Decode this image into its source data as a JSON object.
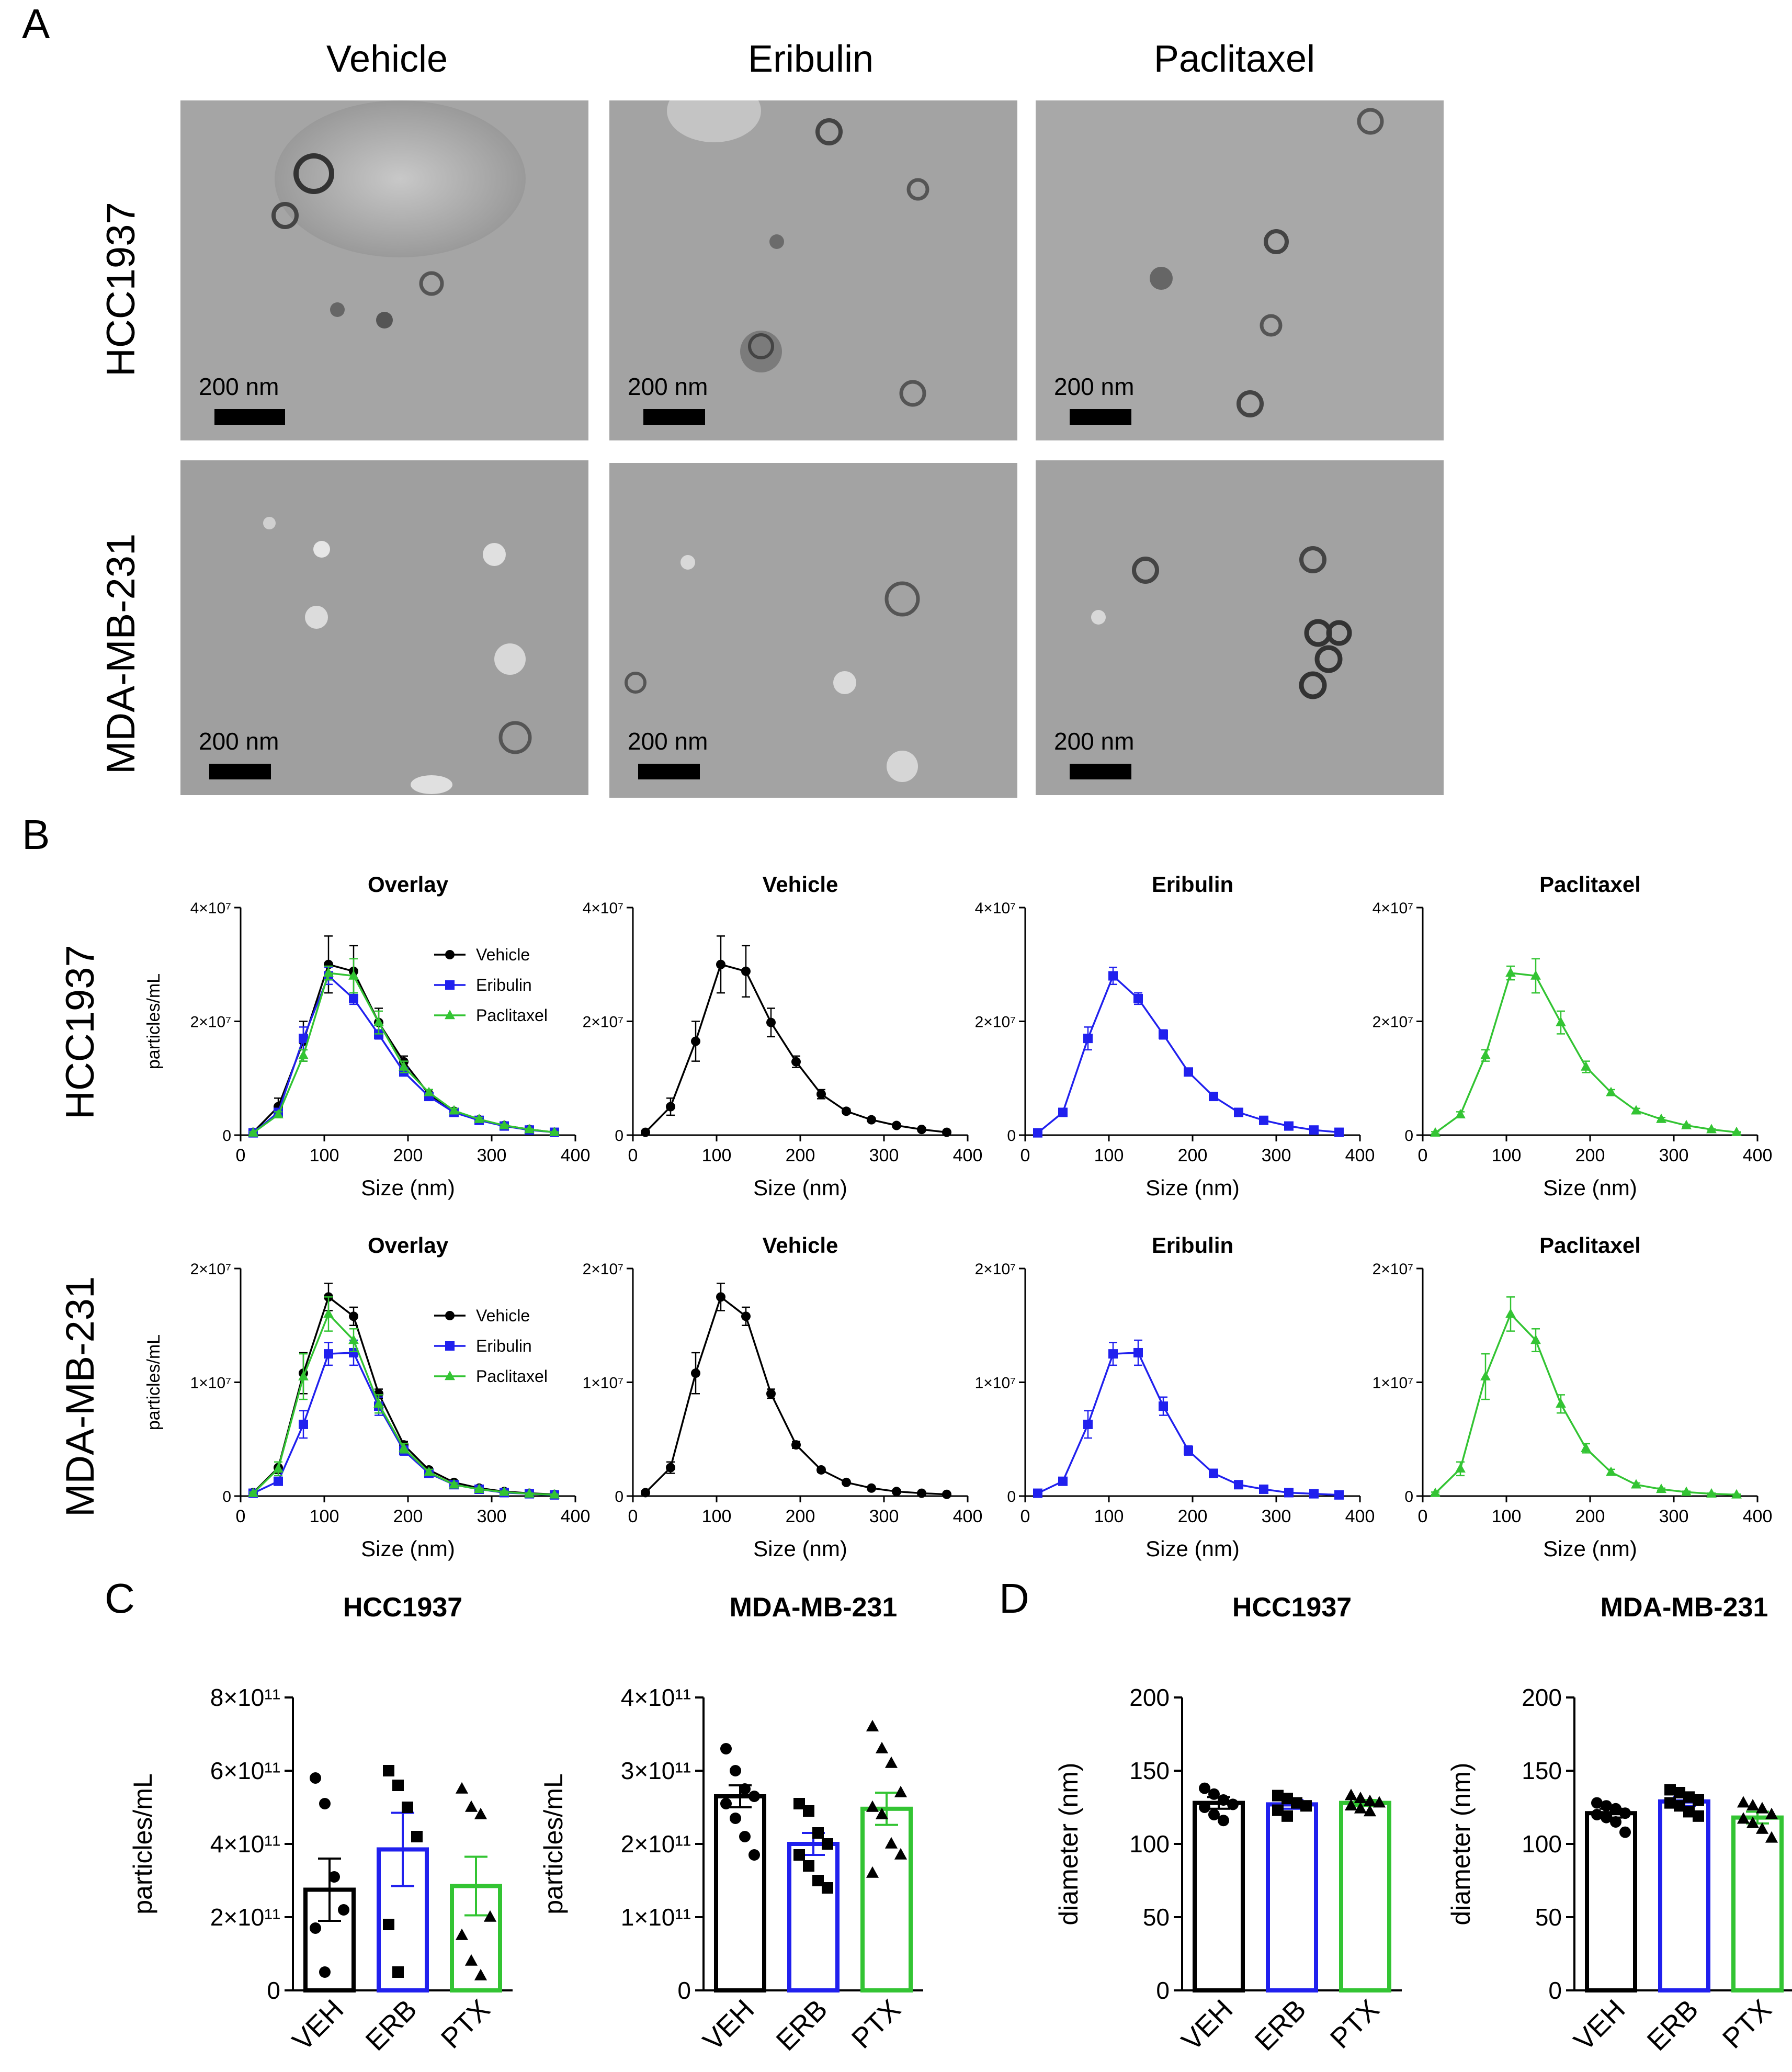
{
  "panels": {
    "a": "A",
    "b": "B",
    "c": "C",
    "d": "D"
  },
  "panel_a": {
    "columns": [
      "Vehicle",
      "Eribulin",
      "Paclitaxel"
    ],
    "rows": [
      "HCC1937",
      "MDA-MB-231"
    ],
    "scale_label": "200 nm"
  },
  "panel_b": {
    "rows": [
      "HCC1937",
      "MDA-MB-231"
    ],
    "overlay_title": "Overlay",
    "xlabel": "Size (nm)",
    "ylabel": "particles/mL",
    "legend": [
      "Vehicle",
      "Eribulin",
      "Paclitaxel"
    ],
    "colors": {
      "Vehicle": "#000000",
      "Eribulin": "#2020ee",
      "Paclitaxel": "#33c433"
    }
  },
  "chart_data": [
    {
      "type": "line",
      "id": "hcc-overlay",
      "title": "Overlay",
      "xlabel": "Size (nm)",
      "ylabel": "particles/mL",
      "xlim": [
        0,
        400
      ],
      "ylim": [
        0,
        40000000
      ],
      "xticks": [
        "0",
        "100",
        "200",
        "300",
        "400"
      ],
      "yticks": [
        "0",
        "2×10⁷",
        "4×10⁷"
      ],
      "legend_position": "top-right",
      "x": [
        15,
        45,
        75,
        105,
        135,
        165,
        195,
        225,
        255,
        285,
        315,
        345,
        375
      ],
      "series": [
        {
          "name": "Vehicle",
          "values": [
            500000,
            5000000,
            16500000,
            30000000,
            28800000,
            19800000,
            12900000,
            7200000,
            4200000,
            2700000,
            1700000,
            1000000,
            500000
          ],
          "errors": [
            300000,
            1500000,
            3500000,
            5000000,
            4500000,
            2500000,
            1000000,
            800000,
            400000,
            300000,
            200000,
            150000,
            100000
          ]
        },
        {
          "name": "Eribulin",
          "values": [
            400000,
            4000000,
            17000000,
            28000000,
            24000000,
            17700000,
            11100000,
            6800000,
            4000000,
            2600000,
            1600000,
            900000,
            500000
          ],
          "errors": [
            200000,
            600000,
            2000000,
            1500000,
            1000000,
            800000,
            600000,
            400000,
            300000,
            200000,
            150000,
            100000,
            80000
          ]
        },
        {
          "name": "Paclitaxel",
          "values": [
            400000,
            3600000,
            14000000,
            28500000,
            28000000,
            19800000,
            12000000,
            7500000,
            4300000,
            2800000,
            1700000,
            1000000,
            500000
          ],
          "errors": [
            200000,
            500000,
            1000000,
            1200000,
            3000000,
            2000000,
            1000000,
            500000,
            400000,
            300000,
            200000,
            100000,
            80000
          ]
        }
      ]
    },
    {
      "type": "line",
      "id": "hcc-vehicle",
      "title": "Vehicle",
      "xlabel": "Size (nm)",
      "xlim": [
        0,
        400
      ],
      "ylim": [
        0,
        40000000
      ],
      "xticks": [
        "0",
        "100",
        "200",
        "300",
        "400"
      ],
      "yticks": [
        "0",
        "2×10⁷",
        "4×10⁷"
      ],
      "x": [
        15,
        45,
        75,
        105,
        135,
        165,
        195,
        225,
        255,
        285,
        315,
        345,
        375
      ],
      "series": [
        {
          "name": "Vehicle",
          "values": [
            500000,
            5000000,
            16500000,
            30000000,
            28800000,
            19800000,
            12900000,
            7200000,
            4200000,
            2700000,
            1700000,
            1000000,
            500000
          ],
          "errors": [
            300000,
            1500000,
            3500000,
            5000000,
            4500000,
            2500000,
            1000000,
            800000,
            400000,
            300000,
            200000,
            150000,
            100000
          ]
        }
      ]
    },
    {
      "type": "line",
      "id": "hcc-eribulin",
      "title": "Eribulin",
      "xlabel": "Size (nm)",
      "xlim": [
        0,
        400
      ],
      "ylim": [
        0,
        40000000
      ],
      "xticks": [
        "0",
        "100",
        "200",
        "300",
        "400"
      ],
      "yticks": [
        "0",
        "2×10⁷",
        "4×10⁷"
      ],
      "x": [
        15,
        45,
        75,
        105,
        135,
        165,
        195,
        225,
        255,
        285,
        315,
        345,
        375
      ],
      "series": [
        {
          "name": "Eribulin",
          "values": [
            400000,
            4000000,
            17000000,
            28000000,
            24000000,
            17700000,
            11100000,
            6800000,
            4000000,
            2600000,
            1600000,
            900000,
            500000
          ],
          "errors": [
            200000,
            600000,
            2000000,
            1500000,
            1000000,
            800000,
            600000,
            400000,
            300000,
            200000,
            150000,
            100000,
            80000
          ]
        }
      ]
    },
    {
      "type": "line",
      "id": "hcc-paclitaxel",
      "title": "Paclitaxel",
      "xlabel": "Size (nm)",
      "xlim": [
        0,
        400
      ],
      "ylim": [
        0,
        40000000
      ],
      "xticks": [
        "0",
        "100",
        "200",
        "300",
        "400"
      ],
      "yticks": [
        "0",
        "2×10⁷",
        "4×10⁷"
      ],
      "x": [
        15,
        45,
        75,
        105,
        135,
        165,
        195,
        225,
        255,
        285,
        315,
        345,
        375
      ],
      "series": [
        {
          "name": "Paclitaxel",
          "values": [
            400000,
            3600000,
            14000000,
            28500000,
            28000000,
            19800000,
            12000000,
            7500000,
            4300000,
            2800000,
            1700000,
            1000000,
            500000
          ],
          "errors": [
            200000,
            500000,
            1000000,
            1200000,
            3000000,
            2000000,
            1000000,
            500000,
            400000,
            300000,
            200000,
            100000,
            80000
          ]
        }
      ]
    },
    {
      "type": "line",
      "id": "mda-overlay",
      "title": "Overlay",
      "xlabel": "Size (nm)",
      "ylabel": "particles/mL",
      "xlim": [
        0,
        400
      ],
      "ylim": [
        0,
        20000000
      ],
      "xticks": [
        "0",
        "100",
        "200",
        "300",
        "400"
      ],
      "yticks": [
        "0",
        "1×10⁷",
        "2×10⁷"
      ],
      "legend_position": "top-right",
      "x": [
        15,
        45,
        75,
        105,
        135,
        165,
        195,
        225,
        255,
        285,
        315,
        345,
        375
      ],
      "series": [
        {
          "name": "Vehicle",
          "values": [
            300000,
            2500000,
            10800000,
            17500000,
            15800000,
            9000000,
            4500000,
            2300000,
            1200000,
            700000,
            400000,
            250000,
            150000
          ],
          "errors": [
            150000,
            500000,
            1800000,
            1200000,
            800000,
            400000,
            300000,
            200000,
            150000,
            100000,
            80000,
            60000,
            50000
          ]
        },
        {
          "name": "Eribulin",
          "values": [
            250000,
            1300000,
            6300000,
            12500000,
            12600000,
            7900000,
            4000000,
            2000000,
            1000000,
            600000,
            300000,
            200000,
            100000
          ],
          "errors": [
            100000,
            300000,
            1200000,
            1000000,
            1100000,
            800000,
            400000,
            250000,
            150000,
            100000,
            80000,
            60000,
            50000
          ]
        },
        {
          "name": "Paclitaxel",
          "values": [
            250000,
            2400000,
            10500000,
            16000000,
            13700000,
            8100000,
            4200000,
            2100000,
            1000000,
            600000,
            350000,
            200000,
            120000
          ],
          "errors": [
            100000,
            600000,
            2000000,
            1500000,
            1000000,
            800000,
            400000,
            250000,
            150000,
            100000,
            80000,
            60000,
            50000
          ]
        }
      ]
    },
    {
      "type": "line",
      "id": "mda-vehicle",
      "title": "Vehicle",
      "xlabel": "Size (nm)",
      "xlim": [
        0,
        400
      ],
      "ylim": [
        0,
        20000000
      ],
      "xticks": [
        "0",
        "100",
        "200",
        "300",
        "400"
      ],
      "yticks": [
        "0",
        "1×10⁷",
        "2×10⁷"
      ],
      "x": [
        15,
        45,
        75,
        105,
        135,
        165,
        195,
        225,
        255,
        285,
        315,
        345,
        375
      ],
      "series": [
        {
          "name": "Vehicle",
          "values": [
            300000,
            2500000,
            10800000,
            17500000,
            15800000,
            9000000,
            4500000,
            2300000,
            1200000,
            700000,
            400000,
            250000,
            150000
          ],
          "errors": [
            150000,
            500000,
            1800000,
            1200000,
            800000,
            400000,
            300000,
            200000,
            150000,
            100000,
            80000,
            60000,
            50000
          ]
        }
      ]
    },
    {
      "type": "line",
      "id": "mda-eribulin",
      "title": "Eribulin",
      "xlabel": "Size (nm)",
      "xlim": [
        0,
        400
      ],
      "ylim": [
        0,
        20000000
      ],
      "xticks": [
        "0",
        "100",
        "200",
        "300",
        "400"
      ],
      "yticks": [
        "0",
        "1×10⁷",
        "2×10⁷"
      ],
      "x": [
        15,
        45,
        75,
        105,
        135,
        165,
        195,
        225,
        255,
        285,
        315,
        345,
        375
      ],
      "series": [
        {
          "name": "Eribulin",
          "values": [
            250000,
            1300000,
            6300000,
            12500000,
            12600000,
            7900000,
            4000000,
            2000000,
            1000000,
            600000,
            300000,
            200000,
            100000
          ],
          "errors": [
            100000,
            300000,
            1200000,
            1000000,
            1100000,
            800000,
            400000,
            250000,
            150000,
            100000,
            80000,
            60000,
            50000
          ]
        }
      ]
    },
    {
      "type": "line",
      "id": "mda-paclitaxel",
      "title": "Paclitaxel",
      "xlabel": "Size (nm)",
      "xlim": [
        0,
        400
      ],
      "ylim": [
        0,
        20000000
      ],
      "xticks": [
        "0",
        "100",
        "200",
        "300",
        "400"
      ],
      "yticks": [
        "0",
        "1×10⁷",
        "2×10⁷"
      ],
      "x": [
        15,
        45,
        75,
        105,
        135,
        165,
        195,
        225,
        255,
        285,
        315,
        345,
        375
      ],
      "series": [
        {
          "name": "Paclitaxel",
          "values": [
            250000,
            2400000,
            10500000,
            16000000,
            13700000,
            8100000,
            4200000,
            2100000,
            1000000,
            600000,
            350000,
            200000,
            120000
          ],
          "errors": [
            100000,
            600000,
            2000000,
            1500000,
            1000000,
            800000,
            400000,
            250000,
            150000,
            100000,
            80000,
            60000,
            50000
          ]
        }
      ]
    },
    {
      "type": "bar",
      "id": "c-hcc",
      "title": "HCC1937",
      "ylabel": "particles/mL",
      "categories": [
        "VEH",
        "ERB",
        "PTX"
      ],
      "ylim": [
        0,
        800000000000
      ],
      "yticks": [
        "0",
        "2×10¹¹",
        "4×10¹¹",
        "6×10¹¹",
        "8×10¹¹"
      ],
      "values": [
        275000000000,
        385000000000,
        285000000000
      ],
      "errors": [
        85000000000,
        100000000000,
        80000000000
      ],
      "points": [
        [
          580000000000,
          510000000000,
          310000000000,
          220000000000,
          170000000000,
          50000000000
        ],
        [
          600000000000,
          560000000000,
          500000000000,
          420000000000,
          180000000000,
          50000000000
        ],
        [
          550000000000,
          500000000000,
          480000000000,
          200000000000,
          150000000000,
          80000000000,
          40000000000
        ]
      ]
    },
    {
      "type": "bar",
      "id": "c-mda",
      "title": "MDA-MB-231",
      "ylabel": "particles/mL",
      "categories": [
        "VEH",
        "ERB",
        "PTX"
      ],
      "ylim": [
        0,
        400000000000
      ],
      "yticks": [
        "0",
        "1×10¹¹",
        "2×10¹¹",
        "3×10¹¹",
        "4×10¹¹"
      ],
      "values": [
        265000000000,
        200000000000,
        248000000000
      ],
      "errors": [
        15000000000,
        15000000000,
        22000000000
      ],
      "points": [
        [
          330000000000,
          300000000000,
          275000000000,
          265000000000,
          255000000000,
          235000000000,
          210000000000,
          185000000000
        ],
        [
          255000000000,
          245000000000,
          215000000000,
          200000000000,
          185000000000,
          170000000000,
          150000000000,
          140000000000
        ],
        [
          360000000000,
          330000000000,
          310000000000,
          270000000000,
          250000000000,
          240000000000,
          200000000000,
          185000000000,
          160000000000
        ]
      ]
    },
    {
      "type": "bar",
      "id": "d-hcc",
      "title": "HCC1937",
      "ylabel": "diameter (nm)",
      "categories": [
        "VEH",
        "ERB",
        "PTX"
      ],
      "ylim": [
        0,
        200
      ],
      "yticks": [
        "0",
        "50",
        "100",
        "150",
        "200"
      ],
      "values": [
        128,
        127,
        128
      ],
      "errors": [
        4,
        3,
        2
      ],
      "points": [
        [
          138,
          134,
          130,
          127,
          125,
          120,
          116
        ],
        [
          133,
          131,
          128,
          126,
          123,
          119
        ],
        [
          133,
          131,
          129,
          128,
          126,
          124,
          122
        ]
      ]
    },
    {
      "type": "bar",
      "id": "d-mda",
      "title": "MDA-MB-231",
      "ylabel": "diameter (nm)",
      "categories": [
        "VEH",
        "ERB",
        "PTX"
      ],
      "ylim": [
        0,
        200
      ],
      "yticks": [
        "0",
        "50",
        "100",
        "150",
        "200"
      ],
      "values": [
        121,
        129,
        118
      ],
      "errors": [
        3,
        3,
        4
      ],
      "points": [
        [
          128,
          126,
          124,
          121,
          120,
          118,
          115,
          108
        ],
        [
          137,
          135,
          132,
          130,
          128,
          126,
          122,
          119
        ],
        [
          128,
          126,
          124,
          120,
          117,
          114,
          110,
          104
        ]
      ]
    }
  ]
}
